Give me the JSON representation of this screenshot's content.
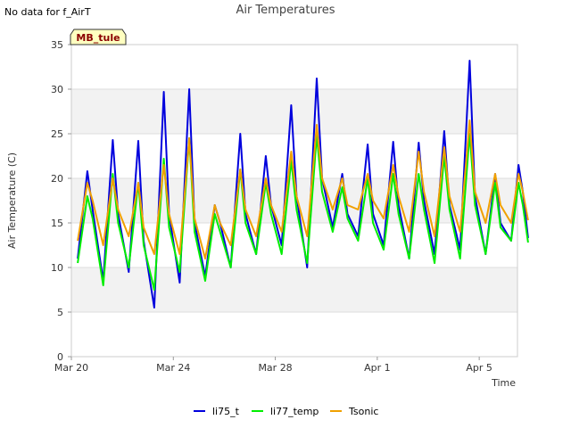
{
  "header": {
    "no_data_note": "No data for f_AirT",
    "title": "Air Temperatures",
    "station_tag": "MB_tule"
  },
  "colors": {
    "li75_t": "#0000dd",
    "li77_temp": "#00ee00",
    "Tsonic": "#f0a000",
    "band": "#f2f2f2",
    "grid": "#dddddd",
    "station_tag_bg": "#ffffc0"
  },
  "chart_data": {
    "type": "line",
    "title": "Air Temperatures",
    "xlabel": "Time",
    "ylabel": "Air Temperature (C)",
    "xlim": [
      "2024-03-20T00:00",
      "2024-04-06T12:00"
    ],
    "ylim": [
      0,
      35
    ],
    "yticks": [
      0,
      5,
      10,
      15,
      20,
      25,
      30,
      35
    ],
    "xticks": [
      {
        "label": "Mar 20",
        "date": "2024-03-20"
      },
      {
        "label": "Mar 24",
        "date": "2024-03-24"
      },
      {
        "label": "Mar 28",
        "date": "2024-03-28"
      },
      {
        "label": "Apr 1",
        "date": "2024-04-01"
      },
      {
        "label": "Apr 5",
        "date": "2024-04-05"
      }
    ],
    "grid": "horizontal bands",
    "legend_position": "bottom",
    "series": [
      {
        "name": "li75_t",
        "points": [
          [
            "2024-03-20T06:00",
            11.0
          ],
          [
            "2024-03-20T15:00",
            20.8
          ],
          [
            "2024-03-20T20:00",
            16.5
          ],
          [
            "2024-03-21T06:00",
            8.5
          ],
          [
            "2024-03-21T15:00",
            24.3
          ],
          [
            "2024-03-21T20:00",
            16.0
          ],
          [
            "2024-03-22T06:00",
            9.5
          ],
          [
            "2024-03-22T15:00",
            24.2
          ],
          [
            "2024-03-22T20:00",
            13.0
          ],
          [
            "2024-03-23T06:00",
            5.5
          ],
          [
            "2024-03-23T15:00",
            29.7
          ],
          [
            "2024-03-23T20:00",
            16.0
          ],
          [
            "2024-03-24T06:00",
            8.3
          ],
          [
            "2024-03-24T15:00",
            30.0
          ],
          [
            "2024-03-24T20:00",
            15.0
          ],
          [
            "2024-03-25T06:00",
            9.0
          ],
          [
            "2024-03-25T15:00",
            17.0
          ],
          [
            "2024-03-25T20:00",
            15.0
          ],
          [
            "2024-03-26T06:00",
            10.0
          ],
          [
            "2024-03-26T15:00",
            25.0
          ],
          [
            "2024-03-26T20:00",
            16.0
          ],
          [
            "2024-03-27T06:00",
            11.5
          ],
          [
            "2024-03-27T15:00",
            22.5
          ],
          [
            "2024-03-27T20:00",
            17.0
          ],
          [
            "2024-03-28T06:00",
            12.5
          ],
          [
            "2024-03-28T15:00",
            28.2
          ],
          [
            "2024-03-28T20:00",
            18.0
          ],
          [
            "2024-03-29T06:00",
            10.0
          ],
          [
            "2024-03-29T15:00",
            31.2
          ],
          [
            "2024-03-29T20:00",
            20.0
          ],
          [
            "2024-03-30T06:00",
            14.5
          ],
          [
            "2024-03-30T15:00",
            20.5
          ],
          [
            "2024-03-30T20:00",
            16.0
          ],
          [
            "2024-03-31T06:00",
            13.5
          ],
          [
            "2024-03-31T15:00",
            23.8
          ],
          [
            "2024-03-31T20:00",
            16.0
          ],
          [
            "2024-04-01T06:00",
            12.5
          ],
          [
            "2024-04-01T15:00",
            24.1
          ],
          [
            "2024-04-01T20:00",
            17.0
          ],
          [
            "2024-04-02T06:00",
            11.0
          ],
          [
            "2024-04-02T15:00",
            24.0
          ],
          [
            "2024-04-02T20:00",
            17.5
          ],
          [
            "2024-04-03T06:00",
            11.5
          ],
          [
            "2024-04-03T15:00",
            25.3
          ],
          [
            "2024-04-03T20:00",
            17.0
          ],
          [
            "2024-04-04T06:00",
            12.0
          ],
          [
            "2024-04-04T15:00",
            33.2
          ],
          [
            "2024-04-04T20:00",
            18.0
          ],
          [
            "2024-04-05T06:00",
            11.5
          ],
          [
            "2024-04-05T15:00",
            20.5
          ],
          [
            "2024-04-05T20:00",
            15.0
          ],
          [
            "2024-04-06T06:00",
            13.0
          ],
          [
            "2024-04-06T13:00",
            21.5
          ],
          [
            "2024-04-06T17:00",
            18.5
          ],
          [
            "2024-04-06T22:00",
            13.3
          ]
        ]
      },
      {
        "name": "li77_temp",
        "points": [
          [
            "2024-03-20T06:00",
            10.5
          ],
          [
            "2024-03-20T15:00",
            18.0
          ],
          [
            "2024-03-20T20:00",
            15.5
          ],
          [
            "2024-03-21T06:00",
            8.0
          ],
          [
            "2024-03-21T15:00",
            20.5
          ],
          [
            "2024-03-21T20:00",
            15.0
          ],
          [
            "2024-03-22T06:00",
            10.0
          ],
          [
            "2024-03-22T15:00",
            19.5
          ],
          [
            "2024-03-22T20:00",
            12.5
          ],
          [
            "2024-03-23T06:00",
            7.5
          ],
          [
            "2024-03-23T15:00",
            22.2
          ],
          [
            "2024-03-23T20:00",
            14.5
          ],
          [
            "2024-03-24T06:00",
            9.5
          ],
          [
            "2024-03-24T15:00",
            24.5
          ],
          [
            "2024-03-24T20:00",
            14.0
          ],
          [
            "2024-03-25T06:00",
            8.5
          ],
          [
            "2024-03-25T15:00",
            16.0
          ],
          [
            "2024-03-25T20:00",
            14.0
          ],
          [
            "2024-03-26T06:00",
            10.0
          ],
          [
            "2024-03-26T15:00",
            21.0
          ],
          [
            "2024-03-26T20:00",
            15.0
          ],
          [
            "2024-03-27T06:00",
            11.5
          ],
          [
            "2024-03-27T15:00",
            19.5
          ],
          [
            "2024-03-27T20:00",
            16.0
          ],
          [
            "2024-03-28T06:00",
            11.5
          ],
          [
            "2024-03-28T15:00",
            22.0
          ],
          [
            "2024-03-28T20:00",
            16.5
          ],
          [
            "2024-03-29T06:00",
            10.5
          ],
          [
            "2024-03-29T15:00",
            24.8
          ],
          [
            "2024-03-29T20:00",
            18.5
          ],
          [
            "2024-03-30T06:00",
            14.0
          ],
          [
            "2024-03-30T15:00",
            19.0
          ],
          [
            "2024-03-30T20:00",
            15.5
          ],
          [
            "2024-03-31T06:00",
            13.0
          ],
          [
            "2024-03-31T15:00",
            20.0
          ],
          [
            "2024-03-31T20:00",
            15.0
          ],
          [
            "2024-04-01T06:00",
            12.0
          ],
          [
            "2024-04-01T15:00",
            20.5
          ],
          [
            "2024-04-01T20:00",
            16.0
          ],
          [
            "2024-04-02T06:00",
            11.0
          ],
          [
            "2024-04-02T15:00",
            20.5
          ],
          [
            "2024-04-02T20:00",
            16.5
          ],
          [
            "2024-04-03T06:00",
            10.5
          ],
          [
            "2024-04-03T15:00",
            22.5
          ],
          [
            "2024-04-03T20:00",
            16.5
          ],
          [
            "2024-04-04T06:00",
            11.0
          ],
          [
            "2024-04-04T15:00",
            25.0
          ],
          [
            "2024-04-04T20:00",
            17.0
          ],
          [
            "2024-04-05T06:00",
            11.5
          ],
          [
            "2024-04-05T15:00",
            19.5
          ],
          [
            "2024-04-05T20:00",
            14.5
          ],
          [
            "2024-04-06T06:00",
            13.0
          ],
          [
            "2024-04-06T13:00",
            19.5
          ],
          [
            "2024-04-06T17:00",
            17.0
          ],
          [
            "2024-04-06T22:00",
            12.8
          ]
        ]
      },
      {
        "name": "Tsonic",
        "points": [
          [
            "2024-03-20T06:00",
            13.0
          ],
          [
            "2024-03-20T15:00",
            19.5
          ],
          [
            "2024-03-20T20:00",
            17.5
          ],
          [
            "2024-03-21T06:00",
            12.5
          ],
          [
            "2024-03-21T15:00",
            20.0
          ],
          [
            "2024-03-21T20:00",
            16.5
          ],
          [
            "2024-03-22T06:00",
            13.5
          ],
          [
            "2024-03-22T15:00",
            19.5
          ],
          [
            "2024-03-22T20:00",
            14.5
          ],
          [
            "2024-03-23T06:00",
            11.5
          ],
          [
            "2024-03-23T15:00",
            21.5
          ],
          [
            "2024-03-23T20:00",
            16.0
          ],
          [
            "2024-03-24T06:00",
            11.5
          ],
          [
            "2024-03-24T15:00",
            24.5
          ],
          [
            "2024-03-24T20:00",
            15.5
          ],
          [
            "2024-03-25T06:00",
            11.0
          ],
          [
            "2024-03-25T15:00",
            17.0
          ],
          [
            "2024-03-25T20:00",
            15.0
          ],
          [
            "2024-03-26T06:00",
            12.5
          ],
          [
            "2024-03-26T15:00",
            21.0
          ],
          [
            "2024-03-26T20:00",
            16.5
          ],
          [
            "2024-03-27T06:00",
            13.5
          ],
          [
            "2024-03-27T15:00",
            20.0
          ],
          [
            "2024-03-27T20:00",
            17.0
          ],
          [
            "2024-03-28T06:00",
            14.0
          ],
          [
            "2024-03-28T15:00",
            23.0
          ],
          [
            "2024-03-28T20:00",
            18.0
          ],
          [
            "2024-03-29T06:00",
            13.5
          ],
          [
            "2024-03-29T15:00",
            26.0
          ],
          [
            "2024-03-29T20:00",
            20.0
          ],
          [
            "2024-03-30T06:00",
            16.5
          ],
          [
            "2024-03-30T15:00",
            20.0
          ],
          [
            "2024-03-30T20:00",
            17.0
          ],
          [
            "2024-03-31T06:00",
            16.5
          ],
          [
            "2024-03-31T15:00",
            20.5
          ],
          [
            "2024-03-31T20:00",
            17.5
          ],
          [
            "2024-04-01T06:00",
            15.5
          ],
          [
            "2024-04-01T15:00",
            21.5
          ],
          [
            "2024-04-01T20:00",
            18.0
          ],
          [
            "2024-04-02T06:00",
            14.0
          ],
          [
            "2024-04-02T15:00",
            23.0
          ],
          [
            "2024-04-02T20:00",
            18.5
          ],
          [
            "2024-04-03T06:00",
            13.5
          ],
          [
            "2024-04-03T15:00",
            23.5
          ],
          [
            "2024-04-03T20:00",
            18.0
          ],
          [
            "2024-04-04T06:00",
            14.0
          ],
          [
            "2024-04-04T15:00",
            26.5
          ],
          [
            "2024-04-04T20:00",
            18.5
          ],
          [
            "2024-04-05T06:00",
            15.0
          ],
          [
            "2024-04-05T15:00",
            20.5
          ],
          [
            "2024-04-05T20:00",
            17.0
          ],
          [
            "2024-04-06T06:00",
            15.0
          ],
          [
            "2024-04-06T13:00",
            20.5
          ],
          [
            "2024-04-06T17:00",
            18.5
          ],
          [
            "2024-04-06T22:00",
            15.3
          ]
        ]
      }
    ]
  }
}
